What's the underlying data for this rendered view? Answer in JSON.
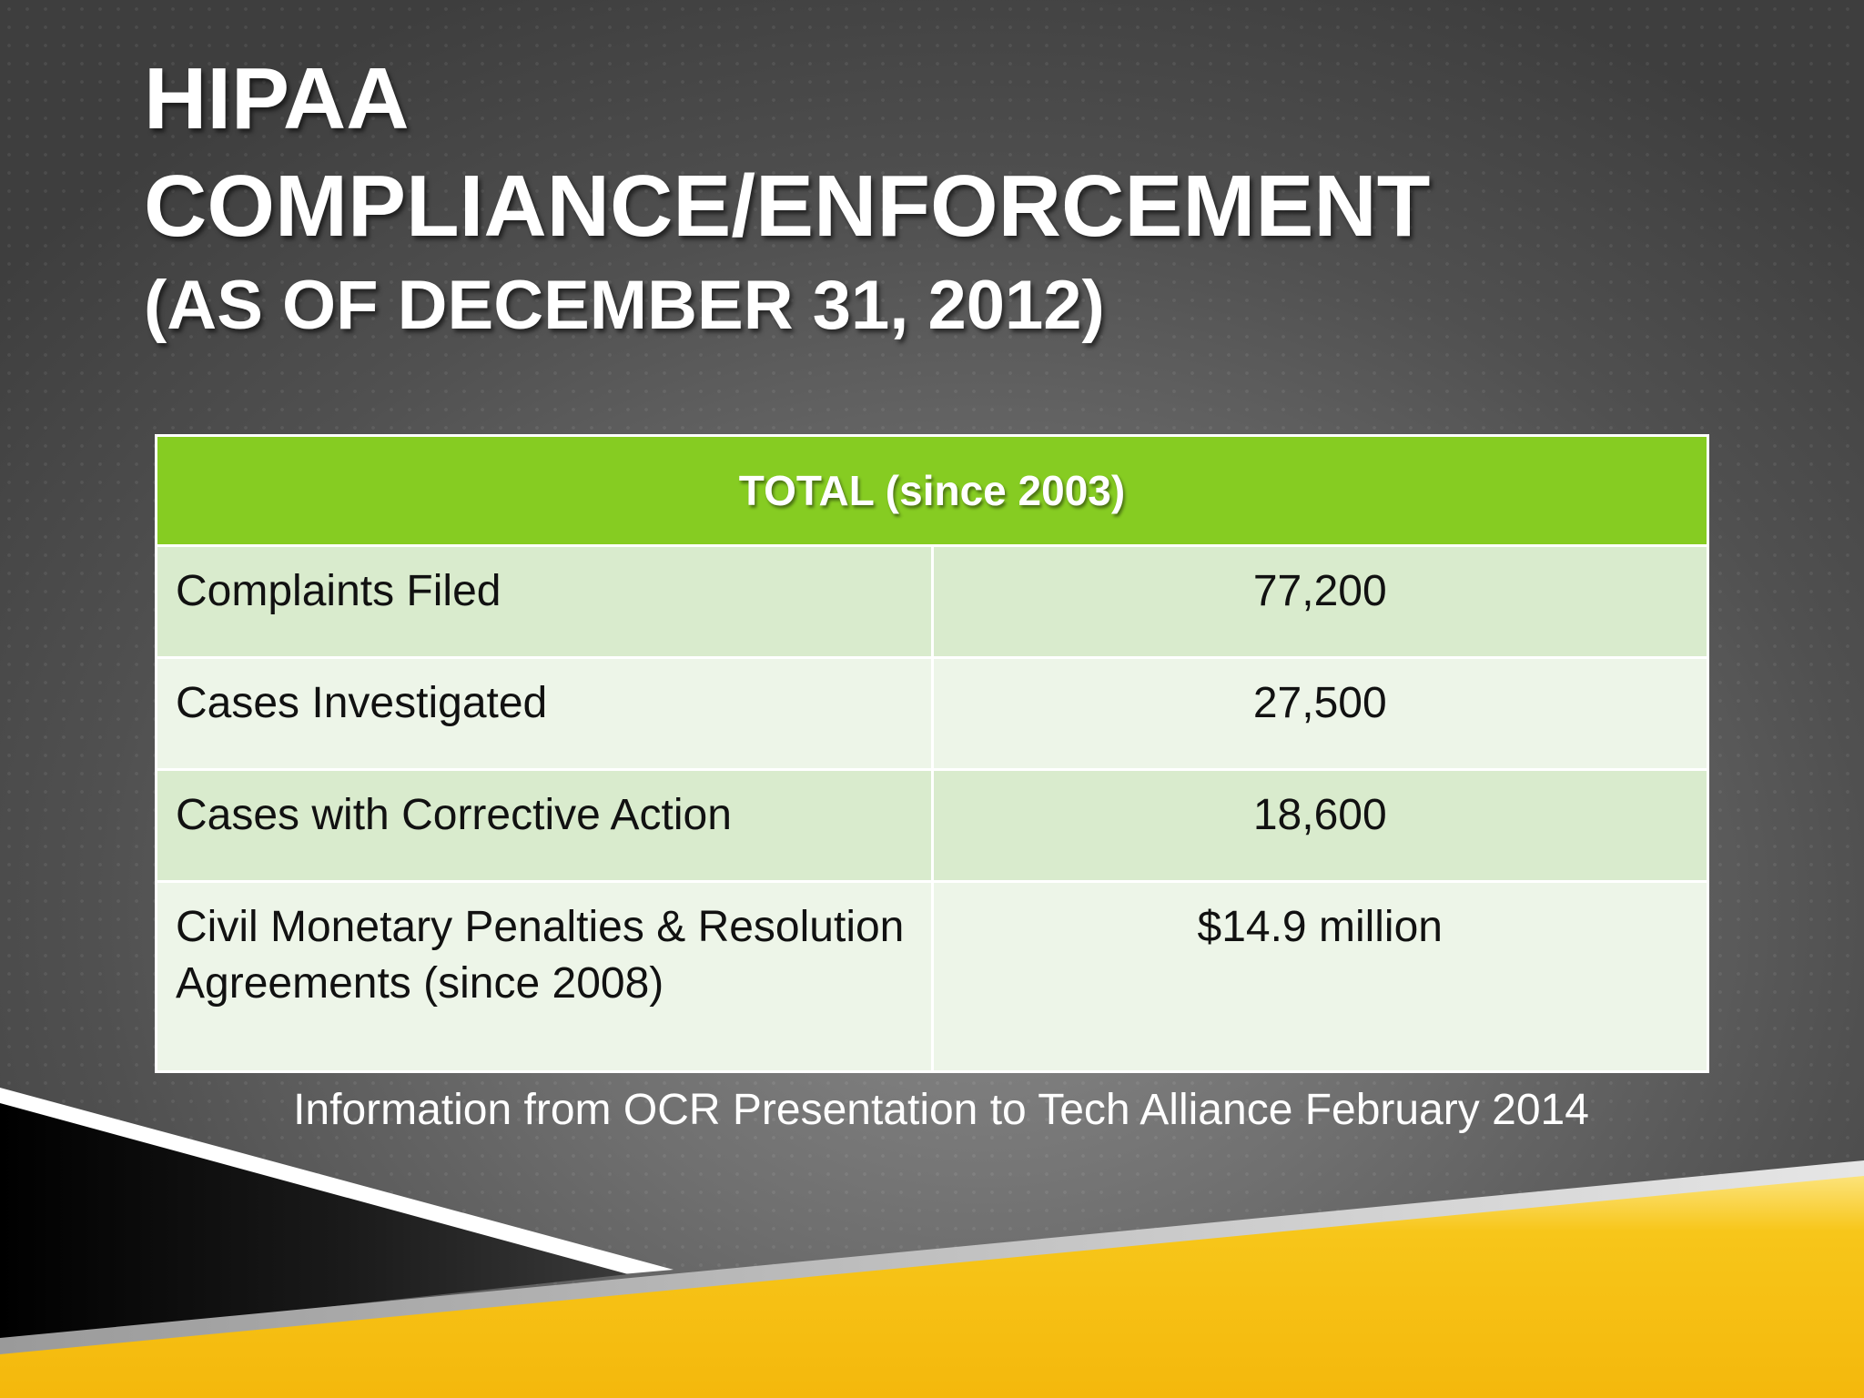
{
  "slide": {
    "title_lines": [
      "HIPAA",
      "COMPLIANCE/ENFORCEMENT",
      "(AS OF DECEMBER 31, 2012)"
    ],
    "table": {
      "header": "TOTAL (since 2003)",
      "rows": [
        {
          "label": "Complaints Filed",
          "value": "77,200"
        },
        {
          "label": "Cases Investigated",
          "value": "27,500"
        },
        {
          "label": "Cases with Corrective Action",
          "value": "18,600"
        },
        {
          "label": "Civil Monetary Penalties & Resolution Agreements (since 2008)",
          "value": "$14.9 million"
        }
      ]
    },
    "source": "Information from OCR Presentation to Tech Alliance February 2014"
  },
  "colors": {
    "header_green": "#86cc22",
    "row_green_dark": "#d9ebcd",
    "row_green_light": "#edf5e8",
    "accent_yellow": "#f8c313",
    "shape_black": "#000000"
  }
}
